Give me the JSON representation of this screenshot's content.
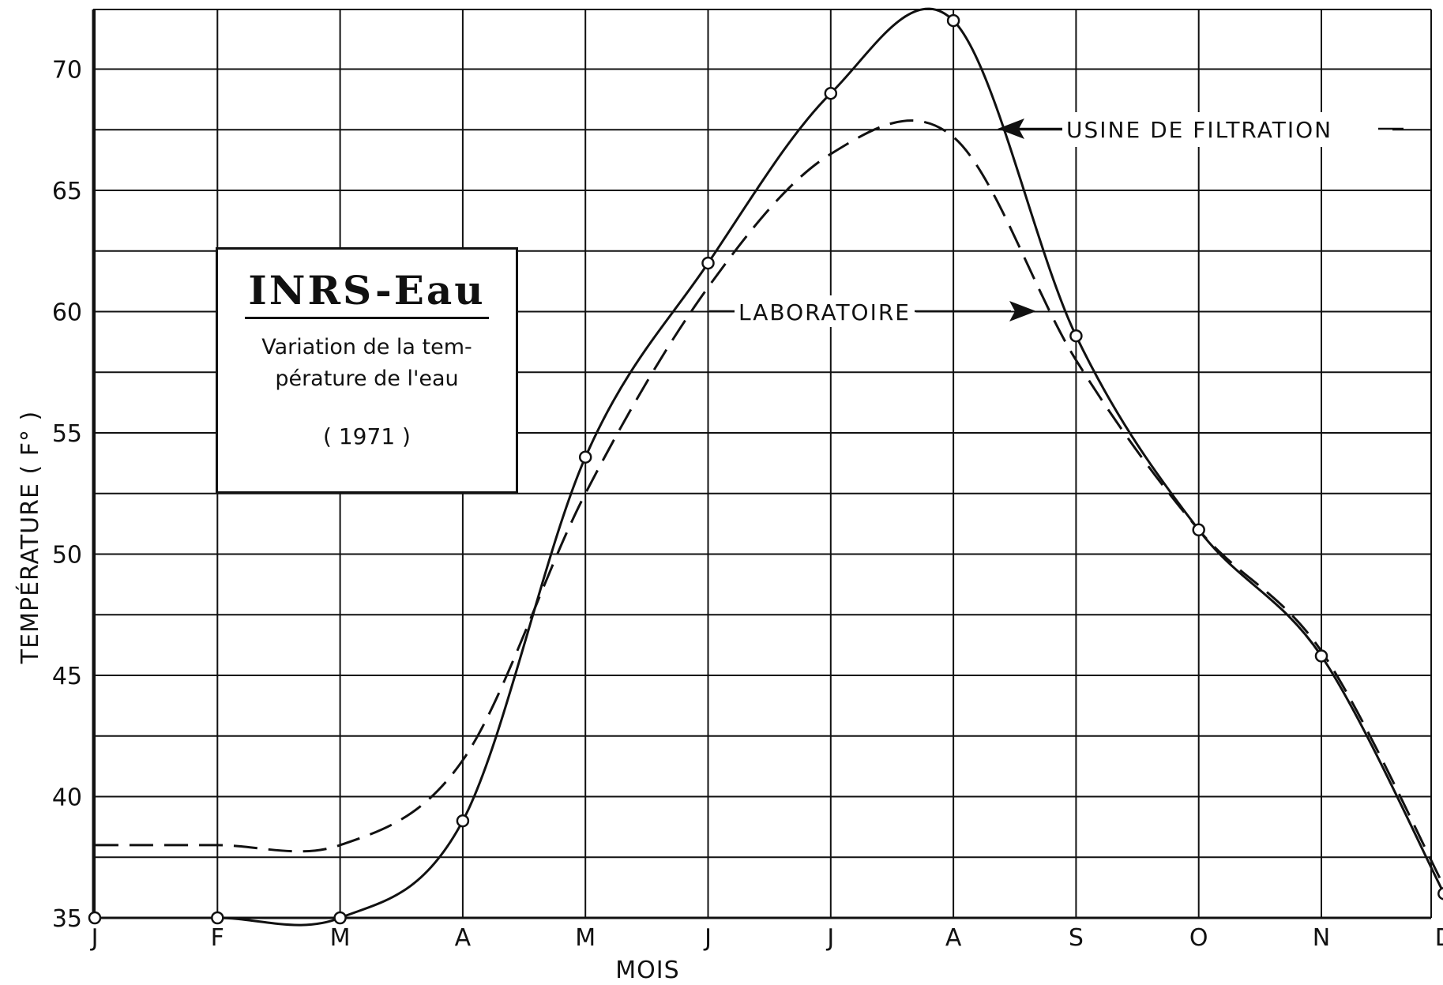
{
  "chart_data": {
    "type": "line",
    "categories": [
      "J",
      "F",
      "M",
      "A",
      "M",
      "J",
      "J",
      "A",
      "S",
      "O",
      "N",
      "D"
    ],
    "ylabel": "TEMPÉRATURE ( F° )",
    "xlabel": "MOIS",
    "ylim": [
      35,
      73
    ],
    "yticks": [
      35,
      40,
      45,
      50,
      55,
      60,
      65,
      70
    ],
    "grid": true,
    "series": [
      {
        "name": "USINE DE FILTRATION",
        "style": "solid",
        "markers": true,
        "values": [
          35,
          35,
          35,
          39,
          54,
          62,
          69,
          72,
          59,
          51,
          45.8,
          36
        ]
      },
      {
        "name": "LABORATOIRE",
        "style": "dashed",
        "markers": false,
        "values": [
          38,
          38,
          38,
          41.5,
          52.5,
          61,
          66.5,
          67.2,
          58,
          51,
          46,
          36.3
        ]
      }
    ],
    "annotations": [
      "USINE DE FILTRATION",
      "LABORATOIRE"
    ]
  },
  "title_box": {
    "brand": "INRS-Eau",
    "subtitle_line1": "Variation de la tem-",
    "subtitle_line2": "pérature de l'eau",
    "year": "( 1971 )"
  },
  "colors": {
    "ink": "#111111",
    "background": "#ffffff"
  }
}
